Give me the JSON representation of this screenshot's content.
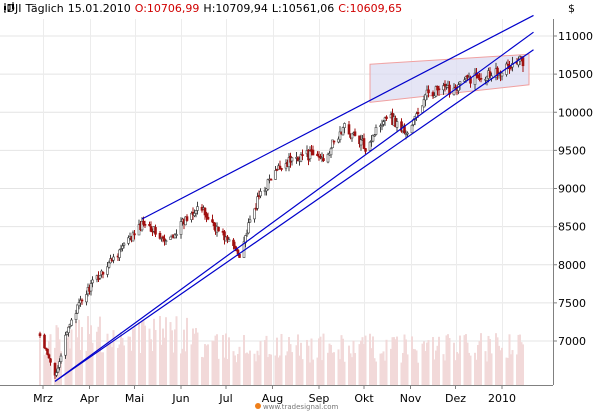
{
  "header": {
    "symbol": ".DJI",
    "period": "Täglich",
    "date": "15.01.2010",
    "open": "O:10706,99",
    "high": "H:10709,94",
    "low": "L:10561,06",
    "close": "C:10609,65"
  },
  "watermark": "www.tradesignal.com",
  "chart_data": {
    "type": "candlestick",
    "currency_label": "$",
    "y_ticks": [
      "11000",
      "10500",
      "10000",
      "9500",
      "9000",
      "8500",
      "8000",
      "7500",
      "7000"
    ],
    "ylim": [
      6470,
      11520
    ],
    "x_ticks": [
      "Mrz",
      "Apr",
      "Mai",
      "Jun",
      "Jul",
      "Aug",
      "Sep",
      "Okt",
      "Nov",
      "Dez",
      "2010"
    ],
    "grid": true,
    "anchors": [
      {
        "date": "2009-02-27",
        "close": 7060
      },
      {
        "date": "2009-03-09",
        "close": 6550
      },
      {
        "date": "2009-03-20",
        "close": 7300
      },
      {
        "date": "2009-04-01",
        "close": 7700
      },
      {
        "date": "2009-04-17",
        "close": 8100
      },
      {
        "date": "2009-05-01",
        "close": 8400
      },
      {
        "date": "2009-05-08",
        "close": 8580
      },
      {
        "date": "2009-05-22",
        "close": 8280
      },
      {
        "date": "2009-06-12",
        "close": 8780
      },
      {
        "date": "2009-06-26",
        "close": 8450
      },
      {
        "date": "2009-07-10",
        "close": 8150
      },
      {
        "date": "2009-07-24",
        "close": 8950
      },
      {
        "date": "2009-08-07",
        "close": 9300
      },
      {
        "date": "2009-08-21",
        "close": 9450
      },
      {
        "date": "2009-09-04",
        "close": 9400
      },
      {
        "date": "2009-09-18",
        "close": 9800
      },
      {
        "date": "2009-10-02",
        "close": 9550
      },
      {
        "date": "2009-10-16",
        "close": 9980
      },
      {
        "date": "2009-10-30",
        "close": 9720
      },
      {
        "date": "2009-11-13",
        "close": 10270
      },
      {
        "date": "2009-11-27",
        "close": 10300
      },
      {
        "date": "2009-12-11",
        "close": 10450
      },
      {
        "date": "2009-12-24",
        "close": 10520
      },
      {
        "date": "2010-01-07",
        "close": 10600
      },
      {
        "date": "2010-01-14",
        "close": 10700
      },
      {
        "date": "2010-01-15",
        "close": 10609.65
      }
    ],
    "trend_lines": [
      {
        "from": {
          "date": "2009-05-06",
          "value": 8600
        },
        "to": {
          "date": "2010-01-22",
          "value": 11270
        }
      },
      {
        "from": {
          "date": "2009-03-09",
          "value": 6470
        },
        "to": {
          "date": "2010-01-22",
          "value": 11050
        }
      },
      {
        "from": {
          "date": "2009-03-09",
          "value": 6470
        },
        "to": {
          "date": "2010-01-22",
          "value": 10820
        }
      }
    ],
    "channel": {
      "from_date": "2009-10-05",
      "to_date": "2010-01-19",
      "upper": [
        10630,
        10760
      ],
      "lower": [
        10130,
        10360
      ]
    }
  }
}
